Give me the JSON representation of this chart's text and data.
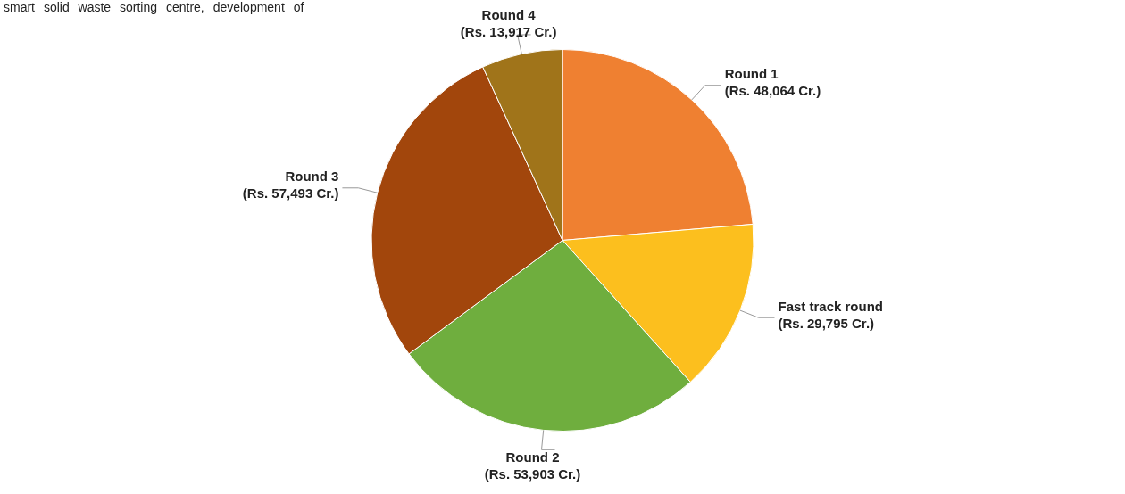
{
  "chart_data": {
    "type": "pie",
    "categories": [
      "Round 1",
      "Fast track round",
      "Round 2",
      "Round 3",
      "Round 4"
    ],
    "values": [
      48064,
      29795,
      53903,
      57493,
      13917
    ],
    "value_labels": [
      "(Rs. 48,064 Cr.)",
      "(Rs. 29,795 Cr.)",
      "(Rs. 53,903 Cr.)",
      "(Rs. 57,493 Cr.)",
      "(Rs. 13,917 Cr.)"
    ],
    "colors": [
      "#ef8031",
      "#fcbf1e",
      "#6fae3e",
      "#a2460c",
      "#a0741a"
    ],
    "legend": false,
    "annotations": [
      "smart solid waste sorting centre, development of"
    ]
  }
}
